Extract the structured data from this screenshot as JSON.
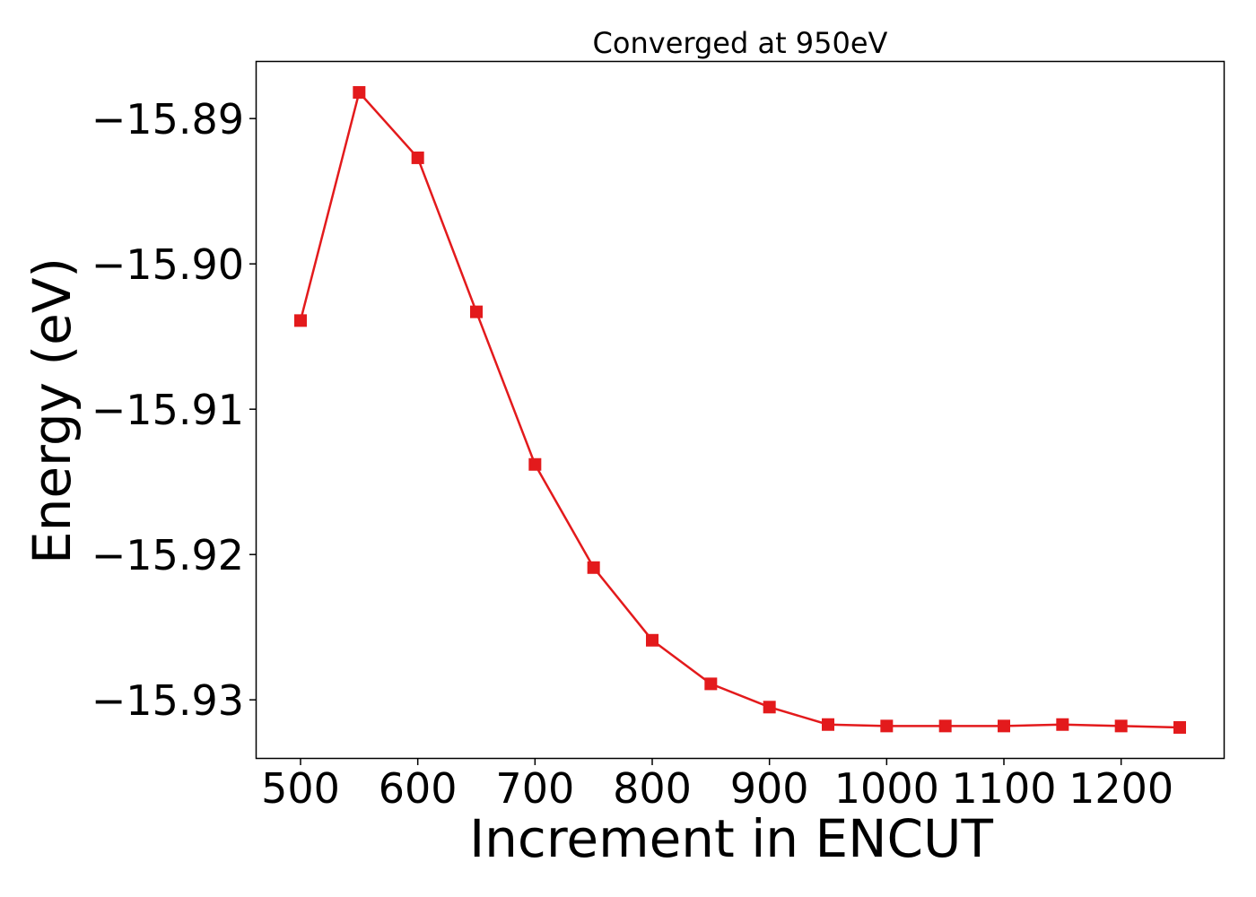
{
  "chart_data": {
    "type": "line",
    "title": "Converged at 950eV",
    "xlabel": "Increment in ENCUT",
    "ylabel": "Energy (eV)",
    "x": [
      500,
      550,
      600,
      650,
      700,
      750,
      800,
      850,
      900,
      950,
      1000,
      1050,
      1100,
      1150,
      1200,
      1250
    ],
    "series": [
      {
        "values": [
          -15.9039,
          -15.8882,
          -15.8927,
          -15.9033,
          -15.9138,
          -15.9209,
          -15.9259,
          -15.9289,
          -15.9305,
          -15.9317,
          -15.9318,
          -15.9318,
          -15.9318,
          -15.9317,
          -15.9318,
          -15.9319
        ],
        "color": "#e31a1c",
        "marker": "square"
      }
    ],
    "xticks": [
      500,
      600,
      700,
      800,
      900,
      1000,
      1100,
      1200
    ],
    "xtick_labels": [
      "500",
      "600",
      "700",
      "800",
      "900",
      "1000",
      "1100",
      "1200"
    ],
    "yticks": [
      -15.89,
      -15.9,
      -15.91,
      -15.92,
      -15.93
    ],
    "ytick_labels": [
      "−15.89",
      "−15.90",
      "−15.91",
      "−15.92",
      "−15.93"
    ],
    "xlim": [
      462.5,
      1287.5
    ],
    "ylim": [
      -15.934,
      -15.8861
    ],
    "grid": false,
    "legend": "none"
  }
}
